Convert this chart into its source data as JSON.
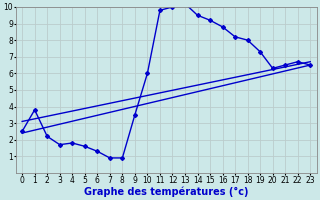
{
  "line1_x": [
    0,
    1,
    2,
    3,
    4,
    5,
    6,
    7,
    8,
    9,
    10,
    11,
    12,
    13,
    14,
    15,
    16,
    17,
    18,
    19,
    20,
    21,
    22,
    23
  ],
  "line1_y": [
    2.5,
    3.8,
    2.2,
    1.7,
    1.8,
    1.6,
    1.3,
    0.9,
    0.9,
    3.5,
    6.0,
    9.8,
    10.0,
    10.2,
    9.5,
    9.2,
    8.8,
    8.2,
    8.0,
    7.3,
    6.3,
    6.5,
    6.7,
    6.5
  ],
  "line2_x": [
    0,
    23
  ],
  "line2_y": [
    2.4,
    6.5
  ],
  "line3_x": [
    0,
    23
  ],
  "line3_y": [
    3.1,
    6.7
  ],
  "line_color": "#0000cc",
  "marker": "D",
  "marker_size": 2,
  "line_width": 1.0,
  "bg_color": "#cce8e8",
  "grid_color": "#bbcccc",
  "xlabel": "Graphe des températures (°c)",
  "xlabel_fontsize": 7,
  "xlim": [
    -0.5,
    23.5
  ],
  "ylim": [
    0,
    10
  ],
  "xticks": [
    0,
    1,
    2,
    3,
    4,
    5,
    6,
    7,
    8,
    9,
    10,
    11,
    12,
    13,
    14,
    15,
    16,
    17,
    18,
    19,
    20,
    21,
    22,
    23
  ],
  "yticks": [
    1,
    2,
    3,
    4,
    5,
    6,
    7,
    8,
    9,
    10
  ],
  "tick_fontsize": 5.5
}
